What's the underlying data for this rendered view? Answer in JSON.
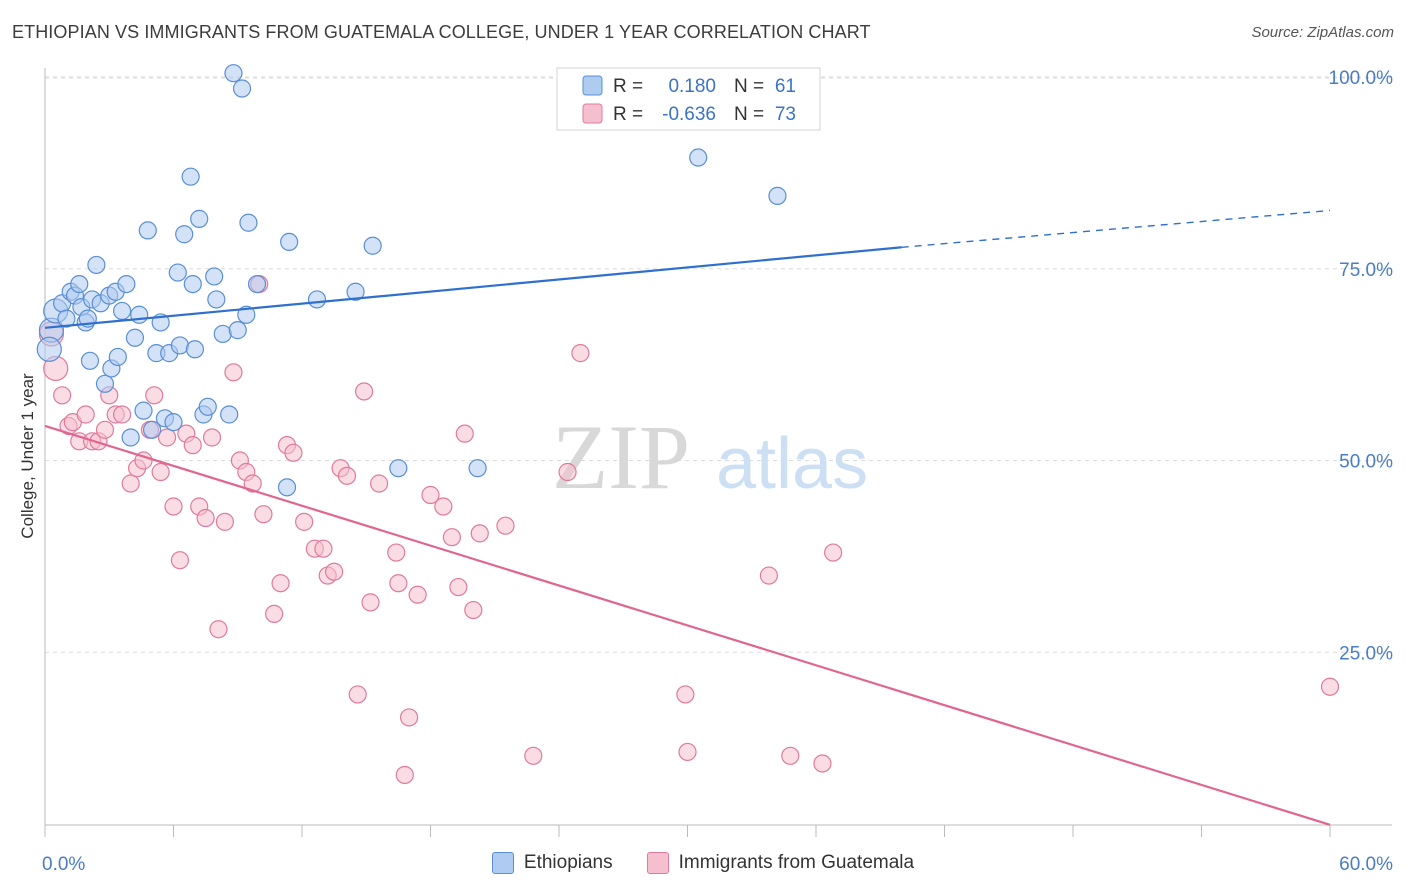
{
  "header": {
    "title": "ETHIOPIAN VS IMMIGRANTS FROM GUATEMALA COLLEGE, UNDER 1 YEAR CORRELATION CHART",
    "source": "Source: ZipAtlas.com"
  },
  "watermark": {
    "zip": "ZIP",
    "atlas": "atlas"
  },
  "colors": {
    "blue": "#5a8fd6",
    "blue_fill": "#aecbf0",
    "blue_line": "#2f6fcf",
    "pink": "#e07a9c",
    "pink_fill": "#f6bfd0",
    "pink_line": "#e0668f",
    "axis_text": "#4a7cc7",
    "grid": "#dcdcdc"
  },
  "legend_stats": {
    "rows": [
      {
        "series": "Ethiopians",
        "r_label": "R =",
        "r_value": "0.180",
        "n_label": "N =",
        "n_value": "61"
      },
      {
        "series": "Immigrants from Guatemala",
        "r_label": "R =",
        "r_value": "-0.636",
        "n_label": "N =",
        "n_value": "73"
      }
    ]
  },
  "chart_data": {
    "type": "scatter",
    "title": "ETHIOPIAN VS IMMIGRANTS FROM GUATEMALA COLLEGE, UNDER 1 YEAR CORRELATION CHART",
    "xlabel": "",
    "ylabel": "College, Under 1 year",
    "xlim": [
      0,
      60
    ],
    "ylim": [
      0,
      105
    ],
    "x_tick_labels": [
      "0.0%",
      "60.0%"
    ],
    "y_ticks": [
      25,
      50,
      75,
      100
    ],
    "y_tick_labels": [
      "25.0%",
      "50.0%",
      "75.0%",
      "100.0%"
    ],
    "grid": true,
    "legend_position": "bottom",
    "series": [
      {
        "name": "Ethiopians",
        "r": 0.18,
        "n": 61,
        "trend": {
          "x0": 0,
          "y0": 67.3,
          "x1": 40,
          "y1": 77.8,
          "dashed_to_x": 60,
          "dashed_to_y": 82.6
        },
        "points": [
          [
            0.3,
            67.0
          ],
          [
            0.5,
            69.5
          ],
          [
            0.8,
            70.5
          ],
          [
            1.0,
            68.5
          ],
          [
            1.2,
            72.0
          ],
          [
            1.4,
            71.5
          ],
          [
            1.6,
            73.0
          ],
          [
            1.7,
            70.0
          ],
          [
            1.9,
            68.0
          ],
          [
            2.0,
            68.5
          ],
          [
            2.1,
            63.0
          ],
          [
            2.2,
            71.0
          ],
          [
            2.4,
            75.5
          ],
          [
            2.6,
            70.5
          ],
          [
            2.8,
            60.0
          ],
          [
            3.0,
            71.5
          ],
          [
            3.1,
            62.0
          ],
          [
            3.3,
            72.0
          ],
          [
            3.4,
            63.5
          ],
          [
            3.6,
            69.5
          ],
          [
            3.8,
            73.0
          ],
          [
            4.0,
            53.0
          ],
          [
            4.2,
            66.0
          ],
          [
            4.4,
            69.0
          ],
          [
            4.6,
            56.5
          ],
          [
            4.8,
            80.0
          ],
          [
            5.0,
            54.0
          ],
          [
            5.2,
            64.0
          ],
          [
            5.4,
            68.0
          ],
          [
            5.6,
            55.5
          ],
          [
            5.8,
            64.0
          ],
          [
            6.0,
            55.0
          ],
          [
            6.2,
            74.5
          ],
          [
            6.3,
            65.0
          ],
          [
            6.5,
            79.5
          ],
          [
            6.8,
            87.0
          ],
          [
            6.9,
            73.0
          ],
          [
            7.2,
            81.5
          ],
          [
            7.0,
            64.5
          ],
          [
            7.4,
            56.0
          ],
          [
            7.6,
            57.0
          ],
          [
            7.9,
            74.0
          ],
          [
            8.0,
            71.0
          ],
          [
            8.3,
            66.5
          ],
          [
            8.6,
            56.0
          ],
          [
            8.8,
            100.5
          ],
          [
            9.0,
            67.0
          ],
          [
            9.2,
            98.5
          ],
          [
            9.4,
            69.0
          ],
          [
            9.5,
            81.0
          ],
          [
            9.9,
            73.0
          ],
          [
            11.3,
            46.5
          ],
          [
            11.4,
            78.5
          ],
          [
            12.7,
            71.0
          ],
          [
            14.5,
            72.0
          ],
          [
            15.3,
            78.0
          ],
          [
            16.5,
            49.0
          ],
          [
            20.2,
            49.0
          ],
          [
            30.5,
            89.5
          ],
          [
            34.2,
            84.5
          ],
          [
            0.2,
            64.5
          ]
        ]
      },
      {
        "name": "Immigrants from Guatemala",
        "r": -0.636,
        "n": 73,
        "trend": {
          "x0": 0,
          "y0": 54.5,
          "x1": 60,
          "y1": 2.5
        },
        "points": [
          [
            0.3,
            66.5
          ],
          [
            0.5,
            62.0
          ],
          [
            0.8,
            58.5
          ],
          [
            1.1,
            54.5
          ],
          [
            1.3,
            55.0
          ],
          [
            1.6,
            52.5
          ],
          [
            1.9,
            56.0
          ],
          [
            2.2,
            52.5
          ],
          [
            2.5,
            52.5
          ],
          [
            2.8,
            54.0
          ],
          [
            3.0,
            58.5
          ],
          [
            3.3,
            56.0
          ],
          [
            3.6,
            56.0
          ],
          [
            4.0,
            47.0
          ],
          [
            4.3,
            49.0
          ],
          [
            4.6,
            50.0
          ],
          [
            4.9,
            54.0
          ],
          [
            5.1,
            58.5
          ],
          [
            5.4,
            48.5
          ],
          [
            5.7,
            53.0
          ],
          [
            6.0,
            44.0
          ],
          [
            6.3,
            37.0
          ],
          [
            6.6,
            53.5
          ],
          [
            6.9,
            52.0
          ],
          [
            7.2,
            44.0
          ],
          [
            7.5,
            42.5
          ],
          [
            7.8,
            53.0
          ],
          [
            8.1,
            28.0
          ],
          [
            8.4,
            42.0
          ],
          [
            8.8,
            61.5
          ],
          [
            9.1,
            50.0
          ],
          [
            9.4,
            48.5
          ],
          [
            9.7,
            47.0
          ],
          [
            10.2,
            43.0
          ],
          [
            10.7,
            30.0
          ],
          [
            11.0,
            34.0
          ],
          [
            11.3,
            52.0
          ],
          [
            11.6,
            51.0
          ],
          [
            12.1,
            42.0
          ],
          [
            12.6,
            38.5
          ],
          [
            13.0,
            38.5
          ],
          [
            13.2,
            35.0
          ],
          [
            13.5,
            35.5
          ],
          [
            13.8,
            49.0
          ],
          [
            14.1,
            48.0
          ],
          [
            14.6,
            19.5
          ],
          [
            14.9,
            59.0
          ],
          [
            15.2,
            31.5
          ],
          [
            15.6,
            47.0
          ],
          [
            16.4,
            38.0
          ],
          [
            16.5,
            34.0
          ],
          [
            17.0,
            16.5
          ],
          [
            17.4,
            32.5
          ],
          [
            18.0,
            45.5
          ],
          [
            18.6,
            44.0
          ],
          [
            19.0,
            40.0
          ],
          [
            19.3,
            33.5
          ],
          [
            19.6,
            53.5
          ],
          [
            20.0,
            30.5
          ],
          [
            20.3,
            40.5
          ],
          [
            21.5,
            41.5
          ],
          [
            22.8,
            11.5
          ],
          [
            24.4,
            48.5
          ],
          [
            25.0,
            64.0
          ],
          [
            29.9,
            19.5
          ],
          [
            30.0,
            12.0
          ],
          [
            33.8,
            35.0
          ],
          [
            34.8,
            11.5
          ],
          [
            36.3,
            10.5
          ],
          [
            36.8,
            38.0
          ],
          [
            60.0,
            20.5
          ],
          [
            16.8,
            9.0
          ],
          [
            10.0,
            73.0
          ]
        ]
      }
    ]
  }
}
